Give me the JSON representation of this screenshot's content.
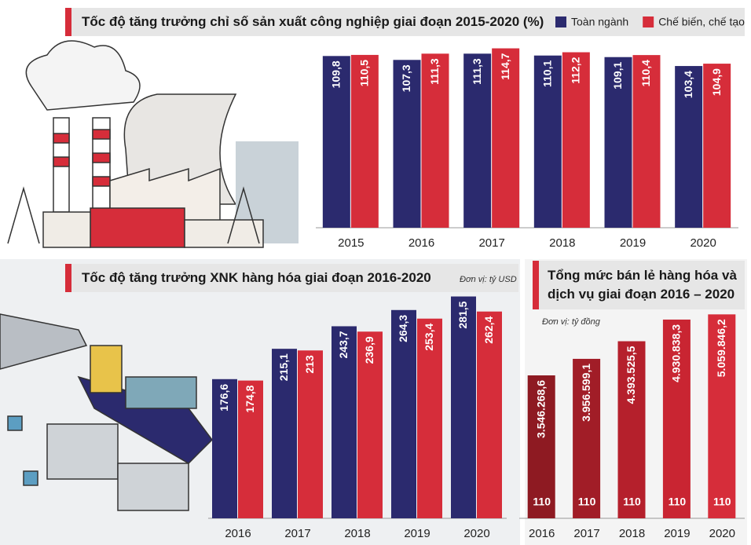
{
  "chart_data": [
    {
      "type": "bar",
      "title": "Tốc độ tăng trưởng chỉ số sản xuất công nghiệp giai đoạn 2015-2020 (%)",
      "categories": [
        "2015",
        "2016",
        "2017",
        "2018",
        "2019",
        "2020"
      ],
      "series": [
        {
          "name": "Toàn ngành",
          "color": "#2b2a6e",
          "values": [
            109.8,
            107.3,
            111.3,
            110.1,
            109.1,
            103.4
          ],
          "value_labels": [
            "109,8",
            "107,3",
            "111,3",
            "110,1",
            "109,1",
            "103,4"
          ]
        },
        {
          "name": "Chế biến, chế tạo",
          "color": "#d62d3a",
          "values": [
            110.5,
            111.3,
            114.7,
            112.2,
            110.4,
            104.9
          ],
          "value_labels": [
            "110,5",
            "111,3",
            "114,7",
            "112,2",
            "110,4",
            "104,9"
          ]
        }
      ],
      "ylim": [
        0,
        120
      ]
    },
    {
      "type": "bar",
      "title": "Tốc độ tăng trưởng XNK hàng hóa giai đoạn 2016-2020",
      "subtitle": "Đơn vị: tỷ USD",
      "categories": [
        "2016",
        "2017",
        "2018",
        "2019",
        "2020"
      ],
      "series": [
        {
          "color": "#2b2a6e",
          "values": [
            176.6,
            215.1,
            243.7,
            264.3,
            281.5
          ],
          "value_labels": [
            "176,6",
            "215,1",
            "243,7",
            "264,3",
            "281,5"
          ]
        },
        {
          "color": "#d62d3a",
          "values": [
            174.8,
            213,
            236.9,
            253.4,
            262.4
          ],
          "value_labels": [
            "174,8",
            "213",
            "236,9",
            "253,4",
            "262,4"
          ]
        }
      ],
      "ylim": [
        0,
        290
      ]
    },
    {
      "type": "bar",
      "title": "Tổng mức bán lẻ hàng hóa và dịch vụ giai đoạn 2016 – 2020",
      "subtitle": "Đơn vị: tỷ đồng",
      "categories": [
        "2016",
        "2017",
        "2018",
        "2019",
        "2020"
      ],
      "values": [
        3546268.6,
        3956599.1,
        4393525.5,
        4930838.3,
        5059846.2
      ],
      "value_labels": [
        "3.546.268,6",
        "3.956.599,1",
        "4.393.525,5",
        "4.930.838,3",
        "5.059.846,2"
      ],
      "index_labels": [
        "110",
        "110",
        "110",
        "110",
        "110"
      ],
      "colors": [
        "#8e1a22",
        "#a11d27",
        "#b5202c",
        "#c92532",
        "#d62d3a"
      ],
      "ylim": [
        0,
        5300000
      ]
    }
  ]
}
